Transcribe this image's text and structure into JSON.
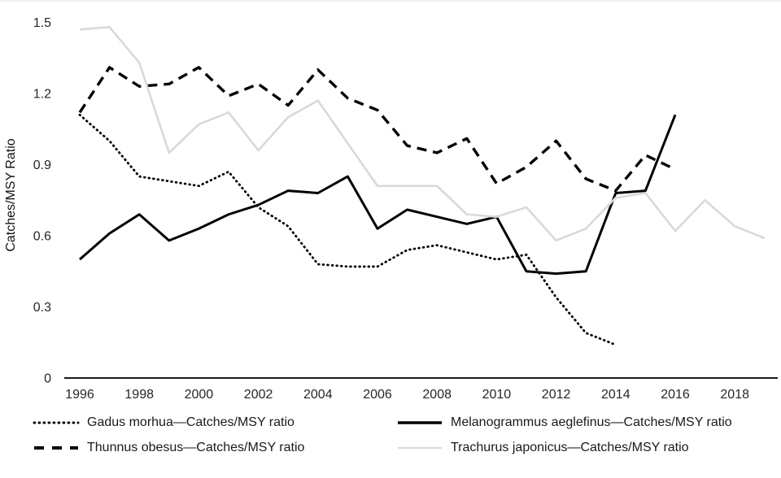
{
  "chart_data": {
    "type": "line",
    "title": "",
    "xlabel": "",
    "ylabel": "Catches/MSY Ratio",
    "ylim": [
      0,
      1.5
    ],
    "yticks": [
      0,
      0.3,
      0.6,
      0.9,
      1.2,
      1.5
    ],
    "xticks": [
      1996,
      1998,
      2000,
      2002,
      2004,
      2006,
      2008,
      2010,
      2012,
      2014,
      2016,
      2018
    ],
    "x_range": [
      1996,
      2019
    ],
    "grid": false,
    "legend_position": "bottom",
    "axis_color": "#1a1a1a",
    "series": [
      {
        "id": "gadus-morhua",
        "name": "Gadus morhua—Catches/MSY ratio",
        "style": "dotted",
        "color": "#000000",
        "x": [
          1996,
          1997,
          1998,
          1999,
          2000,
          2001,
          2002,
          2003,
          2004,
          2005,
          2006,
          2007,
          2008,
          2009,
          2010,
          2011,
          2012,
          2013,
          2014
        ],
        "values": [
          1.11,
          1.0,
          0.85,
          0.83,
          0.81,
          0.87,
          0.72,
          0.64,
          0.48,
          0.47,
          0.47,
          0.54,
          0.56,
          0.53,
          0.5,
          0.52,
          0.34,
          0.19,
          0.14
        ]
      },
      {
        "id": "melanogrammus-aeglefinus",
        "name": "Melanogrammus aeglefinus—Catches/MSY ratio",
        "style": "solid",
        "color": "#000000",
        "x": [
          1996,
          1997,
          1998,
          1999,
          2000,
          2001,
          2002,
          2003,
          2004,
          2005,
          2006,
          2007,
          2008,
          2009,
          2010,
          2011,
          2012,
          2013,
          2014,
          2015,
          2016
        ],
        "values": [
          0.5,
          0.61,
          0.69,
          0.58,
          0.63,
          0.69,
          0.73,
          0.79,
          0.78,
          0.85,
          0.63,
          0.71,
          0.68,
          0.65,
          0.68,
          0.45,
          0.44,
          0.45,
          0.78,
          0.79,
          1.11
        ]
      },
      {
        "id": "thunnus-obesus",
        "name": "Thunnus obesus—Catches/MSY ratio",
        "style": "dashed",
        "color": "#000000",
        "x": [
          1996,
          1997,
          1998,
          1999,
          2000,
          2001,
          2002,
          2003,
          2004,
          2005,
          2006,
          2007,
          2008,
          2009,
          2010,
          2011,
          2012,
          2013,
          2014,
          2015,
          2016
        ],
        "values": [
          1.12,
          1.31,
          1.23,
          1.24,
          1.31,
          1.19,
          1.24,
          1.15,
          1.3,
          1.18,
          1.13,
          0.98,
          0.95,
          1.01,
          0.82,
          0.89,
          1.0,
          0.84,
          0.79,
          0.94,
          0.88
        ]
      },
      {
        "id": "trachurus-japonicus",
        "name": "Trachurus japonicus—Catches/MSY ratio",
        "style": "solid",
        "color": "#d9d9d9",
        "x": [
          1996,
          1997,
          1998,
          1999,
          2000,
          2001,
          2002,
          2003,
          2004,
          2005,
          2006,
          2007,
          2008,
          2009,
          2010,
          2011,
          2012,
          2013,
          2014,
          2015,
          2016,
          2017,
          2018,
          2019
        ],
        "values": [
          1.47,
          1.48,
          1.33,
          0.95,
          1.07,
          1.12,
          0.96,
          1.1,
          1.17,
          0.99,
          0.81,
          0.81,
          0.81,
          0.69,
          0.68,
          0.72,
          0.58,
          0.63,
          0.76,
          0.78,
          0.62,
          0.75,
          0.64,
          0.59
        ]
      }
    ]
  }
}
